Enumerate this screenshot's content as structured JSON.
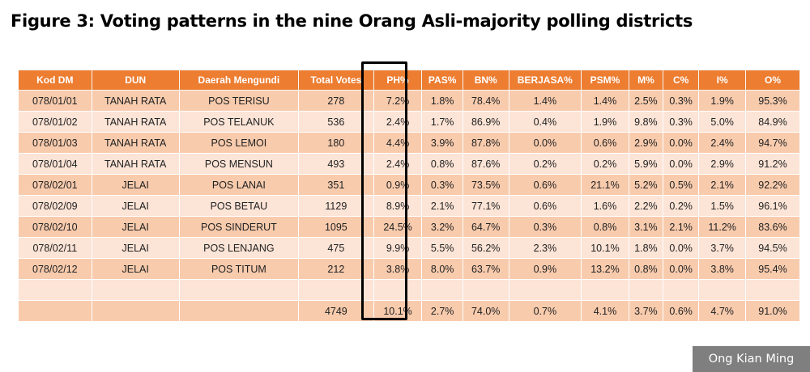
{
  "title": "Figure 3: Voting patterns in the nine Orang Asli-majority polling districts",
  "headers": [
    "Kod DM",
    "DUN",
    "Daerah Mengundi",
    "Total Votes",
    "PH%",
    "PAS%",
    "BN%",
    "BERJASA%",
    "PSM%",
    "M%",
    "C%",
    "I%",
    "O%"
  ],
  "rows": [
    [
      "078/01/01",
      "TANAH RATA",
      "POS TERISU",
      "278",
      "7.2%",
      "1.8%",
      "78.4%",
      "1.4%",
      "1.4%",
      "2.5%",
      "0.3%",
      "1.9%",
      "95.3%"
    ],
    [
      "078/01/02",
      "TANAH RATA",
      "POS TELANUK",
      "536",
      "2.4%",
      "1.7%",
      "86.9%",
      "0.4%",
      "1.9%",
      "9.8%",
      "0.3%",
      "5.0%",
      "84.9%"
    ],
    [
      "078/01/03",
      "TANAH RATA",
      "POS LEMOI",
      "180",
      "4.4%",
      "3.9%",
      "87.8%",
      "0.0%",
      "0.6%",
      "2.9%",
      "0.0%",
      "2.4%",
      "94.7%"
    ],
    [
      "078/01/04",
      "TANAH RATA",
      "POS MENSUN",
      "493",
      "2.4%",
      "0.8%",
      "87.6%",
      "0.2%",
      "0.2%",
      "5.9%",
      "0.0%",
      "2.9%",
      "91.2%"
    ],
    [
      "078/02/01",
      "JELAI",
      "POS LANAI",
      "351",
      "0.9%",
      "0.3%",
      "73.5%",
      "0.6%",
      "21.1%",
      "5.2%",
      "0.5%",
      "2.1%",
      "92.2%"
    ],
    [
      "078/02/09",
      "JELAI",
      "POS BETAU",
      "1129",
      "8.9%",
      "2.1%",
      "77.1%",
      "0.6%",
      "1.6%",
      "2.2%",
      "0.2%",
      "1.5%",
      "96.1%"
    ],
    [
      "078/02/10",
      "JELAI",
      "POS SINDERUT",
      "1095",
      "24.5%",
      "3.2%",
      "64.7%",
      "0.3%",
      "0.8%",
      "3.1%",
      "2.1%",
      "11.2%",
      "83.6%"
    ],
    [
      "078/02/11",
      "JELAI",
      "POS LENJANG",
      "475",
      "9.9%",
      "5.5%",
      "56.2%",
      "2.3%",
      "10.1%",
      "1.8%",
      "0.0%",
      "3.7%",
      "94.5%"
    ],
    [
      "078/02/12",
      "JELAI",
      "POS TITUM",
      "212",
      "3.8%",
      "8.0%",
      "63.7%",
      "0.9%",
      "13.2%",
      "0.8%",
      "0.0%",
      "3.8%",
      "95.4%"
    ],
    [
      "",
      "",
      "",
      "",
      "",
      "",
      "",
      "",
      "",
      "",
      "",
      "",
      ""
    ],
    [
      "",
      "",
      "",
      "4749",
      "10.1%",
      "2.7%",
      "74.0%",
      "0.7%",
      "4.1%",
      "3.7%",
      "0.6%",
      "4.7%",
      "91.0%"
    ]
  ],
  "credit": "Ong Kian Ming",
  "colors": {
    "header_bg": "#ed7d31",
    "row_odd": "#f8cbad",
    "row_even": "#fce4d6",
    "highlight_border": "#000000",
    "credit_bg": "#7f7f7f"
  }
}
